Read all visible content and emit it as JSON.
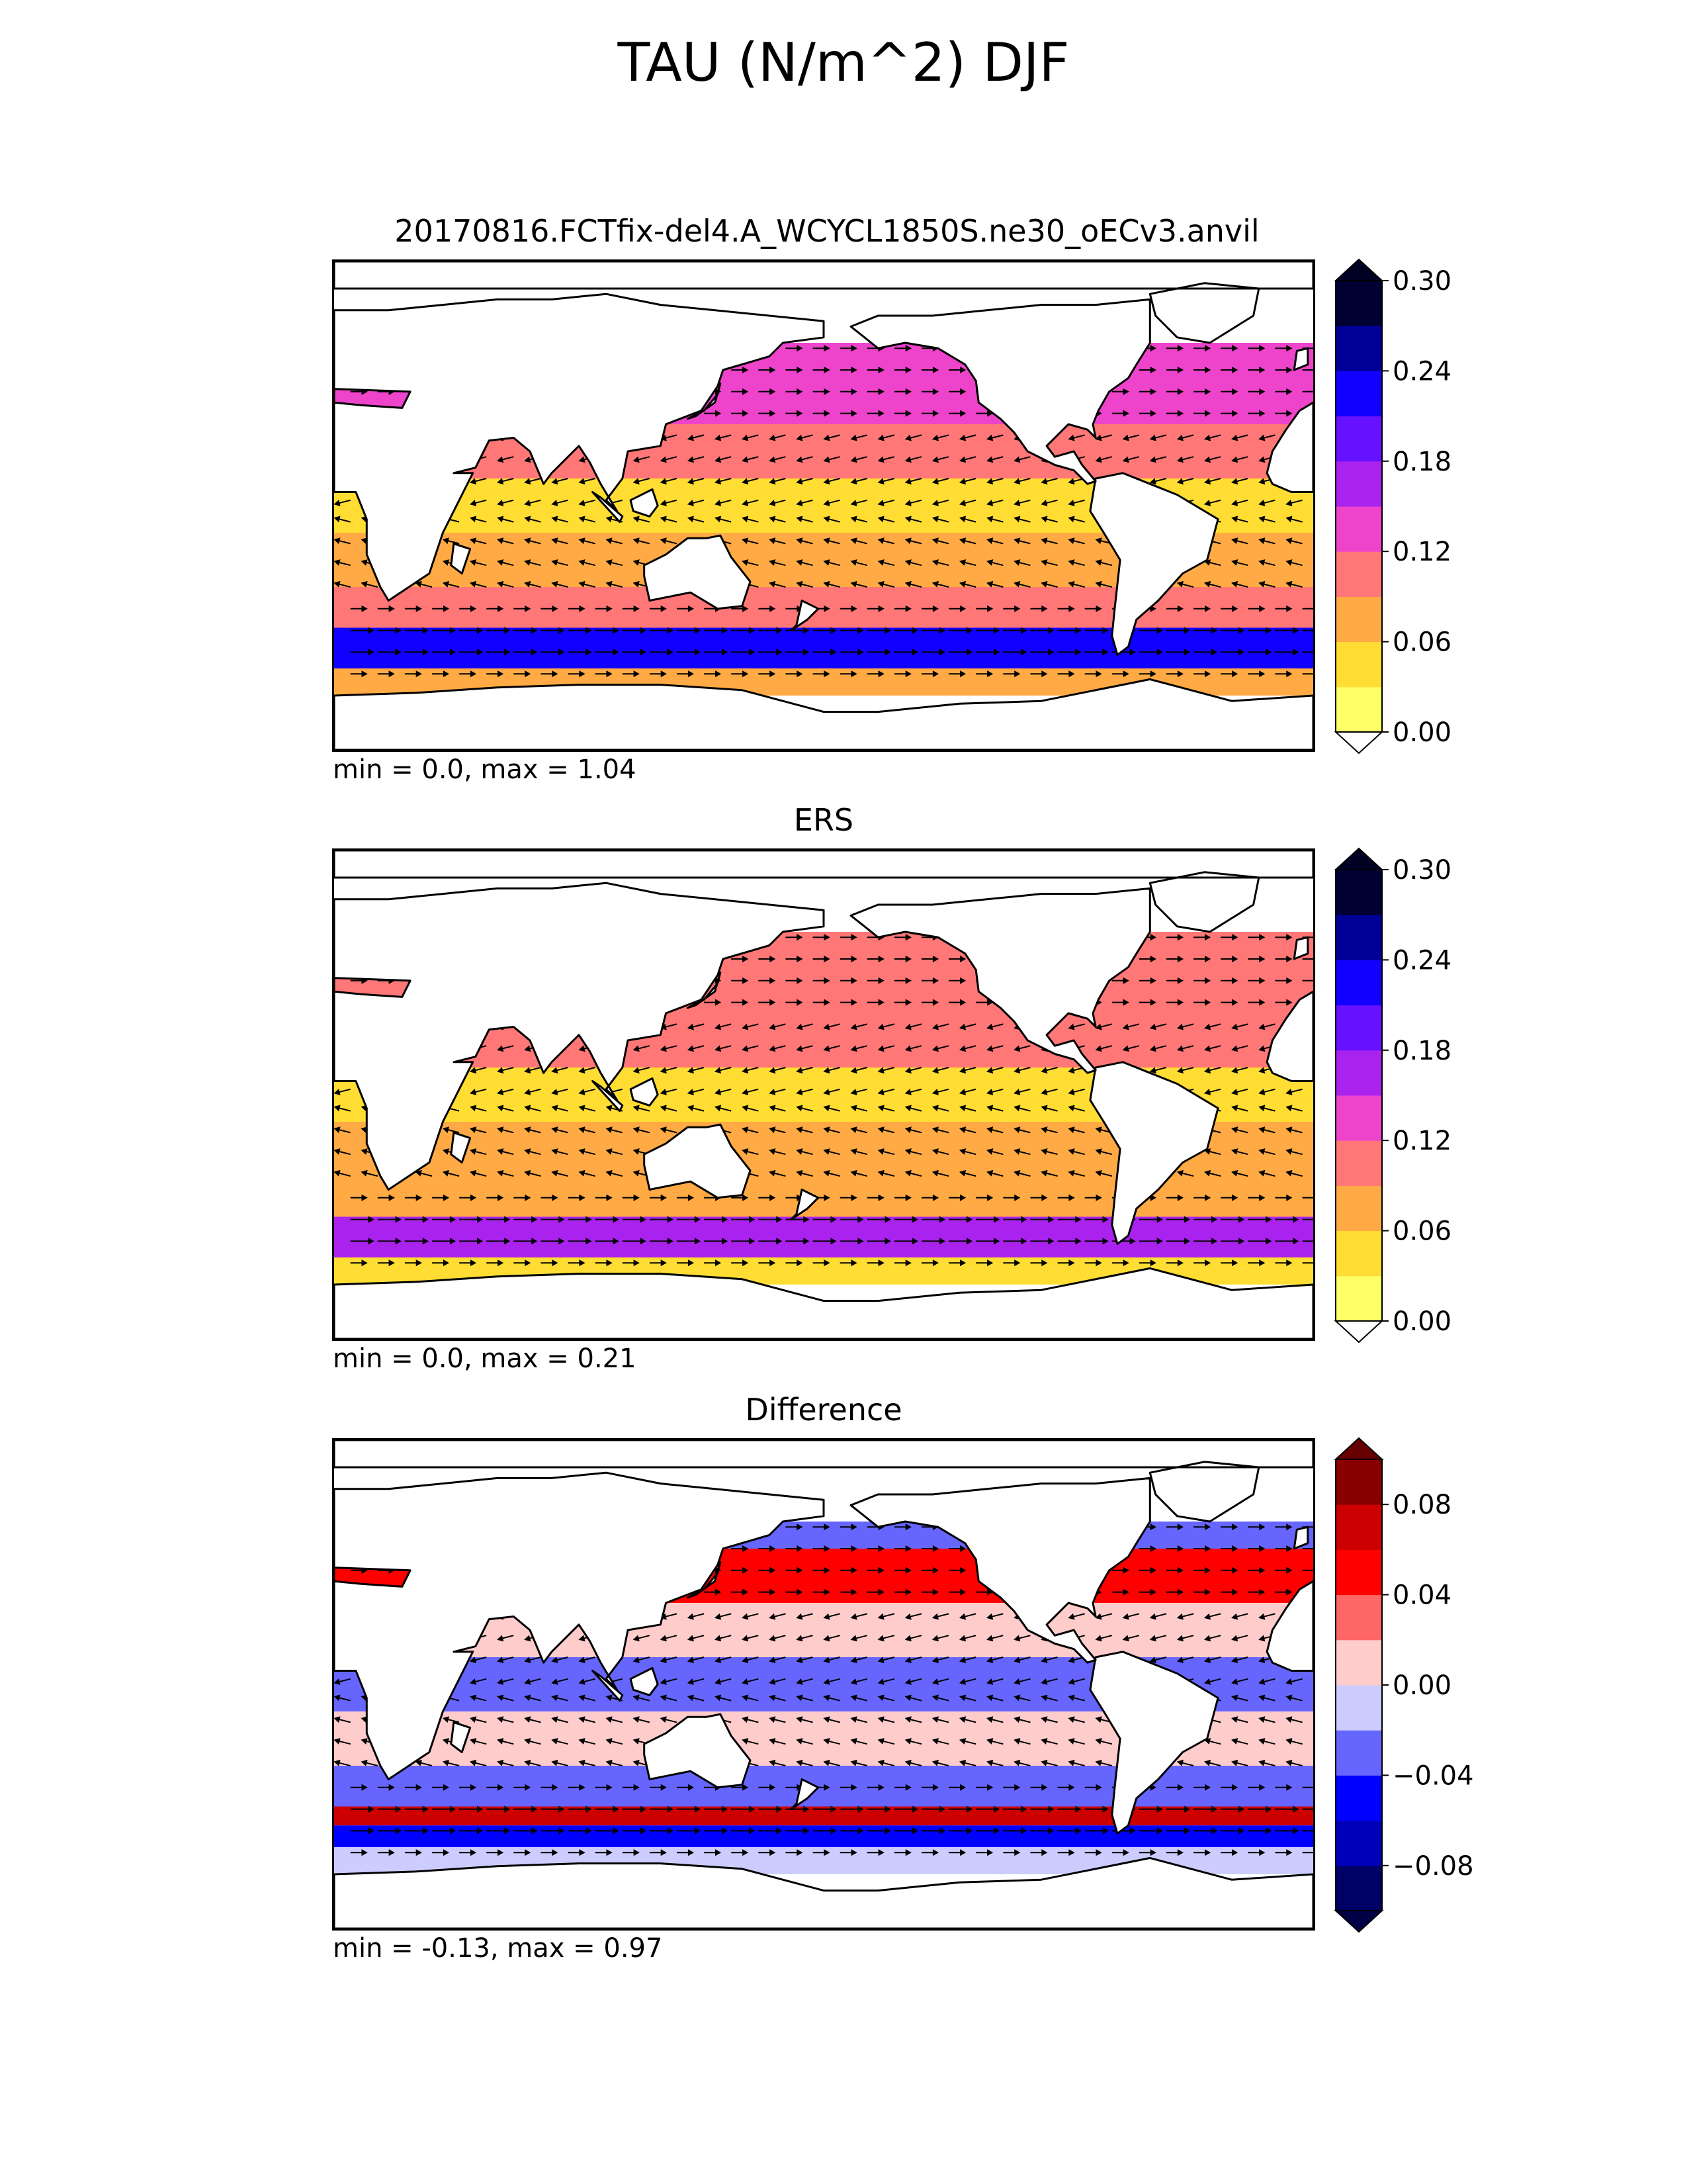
{
  "figure": {
    "title": "TAU (N/m^2) DJF"
  },
  "panels": [
    {
      "id": "model",
      "title": "20170816.FCTfix-del4.A_WCYCL1850S.ne30_oECv3.anvil",
      "stats": "min = 0.0, max = 1.04",
      "colorbar": {
        "extend": "both",
        "ticks": [
          "0.00",
          "0.06",
          "0.12",
          "0.18",
          "0.24",
          "0.30"
        ],
        "colors": [
          "#ffff66",
          "#ffdd33",
          "#ffaa44",
          "#ff7777",
          "#ee44cc",
          "#aa22ee",
          "#6611ff",
          "#1100ff",
          "#000099",
          "#000033"
        ],
        "over_color": "#000022",
        "under_color": "#ffffff"
      }
    },
    {
      "id": "obs",
      "title": "ERS",
      "stats": "min = 0.0, max = 0.21",
      "colorbar": {
        "extend": "both",
        "ticks": [
          "0.00",
          "0.06",
          "0.12",
          "0.18",
          "0.24",
          "0.30"
        ],
        "colors": [
          "#ffff66",
          "#ffdd33",
          "#ffaa44",
          "#ff7777",
          "#ee44cc",
          "#aa22ee",
          "#6611ff",
          "#1100ff",
          "#000099",
          "#000033"
        ],
        "over_color": "#000022",
        "under_color": "#ffffff"
      }
    },
    {
      "id": "diff",
      "title": "Difference",
      "stats": "min = -0.13, max = 0.97",
      "colorbar": {
        "extend": "both",
        "ticks": [
          "0.08",
          "0.04",
          "0.00",
          "−0.04",
          "−0.08"
        ],
        "colors": [
          "#000066",
          "#0000bb",
          "#0000ff",
          "#6666ff",
          "#ccccff",
          "#ffcccc",
          "#ff6666",
          "#ff0000",
          "#cc0000",
          "#880000"
        ],
        "over_color": "#660000",
        "under_color": "#000044"
      }
    }
  ],
  "chart_data": {
    "type": "heatmap",
    "title": "TAU (N/m^2) DJF",
    "variable": "wind stress magnitude with vector overlay",
    "season": "DJF",
    "units": "N/m^2",
    "subplots": [
      {
        "title": "20170816.FCTfix-del4.A_WCYCL1850S.ne30_oECv3.anvil",
        "stats": {
          "min": 0.0,
          "max": 1.04
        },
        "colorbar_range": [
          0.0,
          0.3
        ],
        "colorbar_ticks": [
          0.0,
          0.06,
          0.12,
          0.18,
          0.24,
          0.3
        ],
        "zonal_bands": [
          {
            "lat_range": [
              50,
              60
            ],
            "level": 0.14
          },
          {
            "lat_range": [
              30,
              50
            ],
            "level": 0.12
          },
          {
            "lat_range": [
              10,
              30
            ],
            "level": 0.09
          },
          {
            "lat_range": [
              -10,
              10
            ],
            "level": 0.05
          },
          {
            "lat_range": [
              -30,
              -10
            ],
            "level": 0.07
          },
          {
            "lat_range": [
              -45,
              -30
            ],
            "level": 0.1
          },
          {
            "lat_range": [
              -60,
              -45
            ],
            "level": 0.22
          },
          {
            "lat_range": [
              -70,
              -60
            ],
            "level": 0.06
          }
        ]
      },
      {
        "title": "ERS",
        "stats": {
          "min": 0.0,
          "max": 0.21
        },
        "colorbar_range": [
          0.0,
          0.3
        ],
        "colorbar_ticks": [
          0.0,
          0.06,
          0.12,
          0.18,
          0.24,
          0.3
        ],
        "zonal_bands": [
          {
            "lat_range": [
              50,
              60
            ],
            "level": 0.1
          },
          {
            "lat_range": [
              30,
              50
            ],
            "level": 0.11
          },
          {
            "lat_range": [
              10,
              30
            ],
            "level": 0.09
          },
          {
            "lat_range": [
              -10,
              10
            ],
            "level": 0.04
          },
          {
            "lat_range": [
              -30,
              -10
            ],
            "level": 0.07
          },
          {
            "lat_range": [
              -45,
              -30
            ],
            "level": 0.08
          },
          {
            "lat_range": [
              -60,
              -45
            ],
            "level": 0.16
          },
          {
            "lat_range": [
              -70,
              -60
            ],
            "level": 0.04
          }
        ]
      },
      {
        "title": "Difference",
        "stats": {
          "min": -0.13,
          "max": 0.97
        },
        "colorbar_range": [
          -0.1,
          0.1
        ],
        "colorbar_ticks": [
          0.08,
          0.04,
          0.0,
          -0.04,
          -0.08
        ],
        "zonal_bands": [
          {
            "lat_range": [
              50,
              60
            ],
            "level": -0.03
          },
          {
            "lat_range": [
              30,
              50
            ],
            "level": 0.06
          },
          {
            "lat_range": [
              10,
              30
            ],
            "level": 0.01
          },
          {
            "lat_range": [
              -10,
              10
            ],
            "level": -0.02
          },
          {
            "lat_range": [
              -30,
              -10
            ],
            "level": 0.005
          },
          {
            "lat_range": [
              -45,
              -30
            ],
            "level": -0.02
          },
          {
            "lat_range": [
              -52,
              -45
            ],
            "level": 0.07
          },
          {
            "lat_range": [
              -60,
              -52
            ],
            "level": -0.05
          },
          {
            "lat_range": [
              -70,
              -60
            ],
            "level": -0.01
          }
        ]
      }
    ]
  }
}
